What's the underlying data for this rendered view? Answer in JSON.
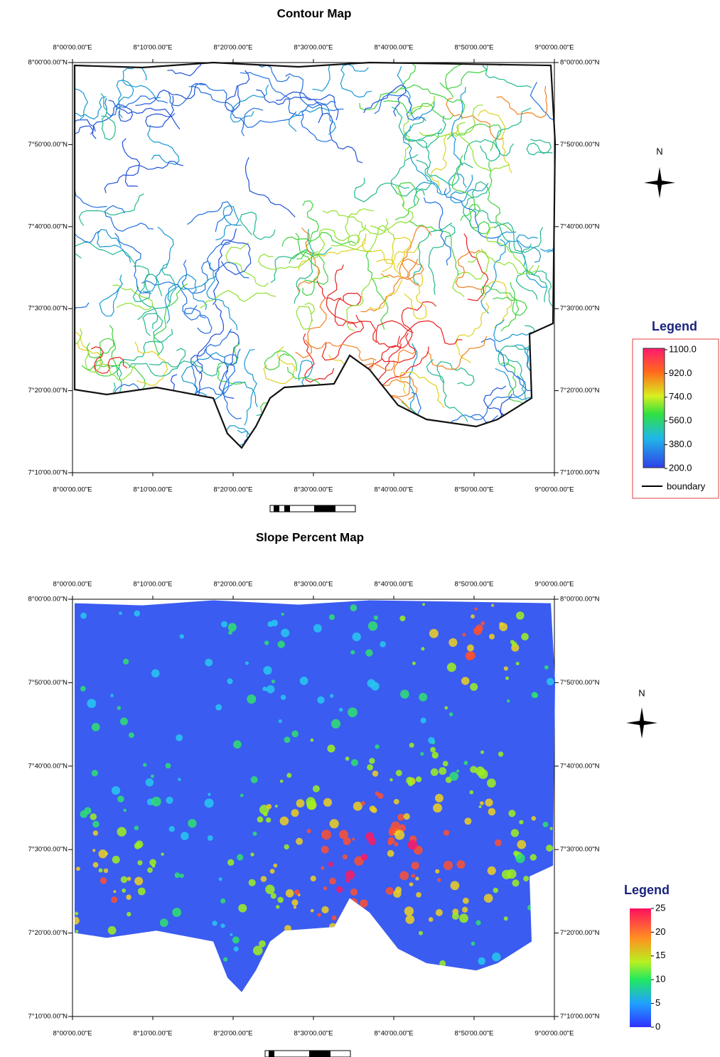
{
  "maps": [
    {
      "title": "Contour Map",
      "top_labels": [
        "8°00'00.00\"E",
        "8°10'00.00\"E",
        "8°20'00.00\"E",
        "8°30'00.00\"E",
        "8°40'00.00\"E",
        "8°50'00.00\"E",
        "9°00'00.00\"E"
      ],
      "bottom_labels": [
        "8°00'00.00\"E",
        "8°10'00.00\"E",
        "8°20'00.00\"E",
        "8°30'00.00\"E",
        "8°40'00.00\"E",
        "8°50'00.00\"E",
        "9°00'00.00\"E"
      ],
      "left_labels": [
        "8°00'00.00\"N",
        "7°50'00.00\"N",
        "7°40'00.00\"N",
        "7°30'00.00\"N",
        "7°20'00.00\"N",
        "7°10'00.00\"N"
      ],
      "right_labels": [
        "8°00'00.00\"N",
        "7°50'00.00\"N",
        "7°40'00.00\"N",
        "7°30'00.00\"N",
        "7°20'00.00\"N",
        "7°10'00.00\"N"
      ],
      "north": "N",
      "legend": {
        "title": "Legend",
        "labels": [
          "1100.0",
          "920.0",
          "740.0",
          "560.0",
          "380.0",
          "200.0"
        ],
        "boundary": "boundary"
      }
    },
    {
      "title": "Slope Percent Map",
      "top_labels": [
        "8°00'00.00\"E",
        "8°10'00.00\"E",
        "8°20'00.00\"E",
        "8°30'00.00\"E",
        "8°40'00.00\"E",
        "8°50'00.00\"E",
        "9°00'00.00\"E"
      ],
      "bottom_labels": [
        "8°00'00.00\"E",
        "8°10'00.00\"E",
        "8°20'00.00\"E",
        "8°30'00.00\"E",
        "8°40'00.00\"E",
        "8°50'00.00\"E",
        "9°00'00.00\"E"
      ],
      "left_labels": [
        "8°00'00.00\"N",
        "7°50'00.00\"N",
        "7°40'00.00\"N",
        "7°30'00.00\"N",
        "7°20'00.00\"N",
        "7°10'00.00\"N"
      ],
      "right_labels": [
        "8°00'00.00\"N",
        "7°50'00.00\"N",
        "7°40'00.00\"N",
        "7°30'00.00\"N",
        "7°20'00.00\"N",
        "7°10'00.00\"N"
      ],
      "north": "N",
      "legend": {
        "title": "Legend",
        "labels": [
          "25",
          "20",
          "15",
          "10",
          "5",
          "0"
        ]
      }
    }
  ]
}
